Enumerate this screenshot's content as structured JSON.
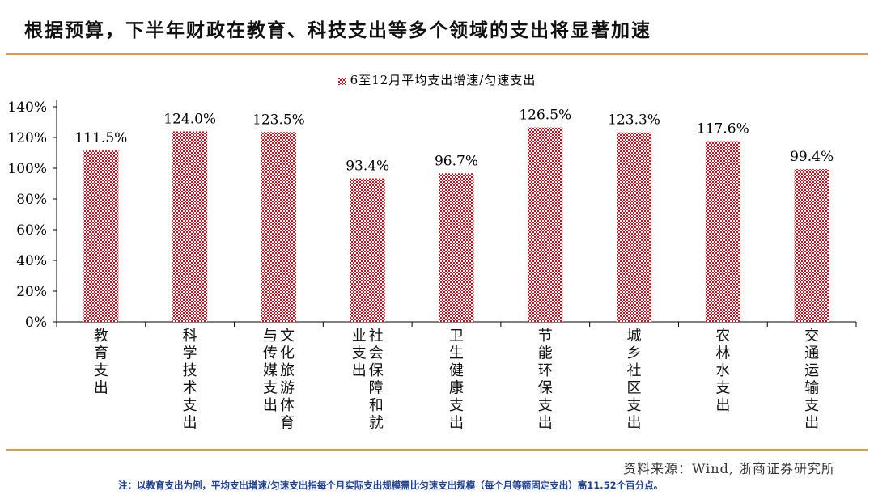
{
  "title": "根据预算，下半年财政在教育、科技支出等多个领域的支出将显著加速",
  "source": "资料来源：Wind, 浙商证券研究所",
  "note": "注：以教育支出为例，平均支出增速/匀速支出指每个月实际支出规模需比匀速支出规模（每个月等额固定支出）高11.52个百分点。",
  "colors": {
    "bar": "#c8101e",
    "rule": "#e59a3a",
    "note": "#1f3f8f"
  },
  "chart_data": {
    "type": "bar",
    "categories": [
      "教育支出",
      "科学技术支出",
      "文化旅游体育与传媒支出",
      "社会保障和就业支出",
      "卫生健康支出",
      "节能环保支出",
      "城乡社区支出",
      "农林水支出",
      "交通运输支出"
    ],
    "category_lines": [
      [
        "教育支出"
      ],
      [
        "科学技术支出"
      ],
      [
        "文化旅游体育",
        "与传媒支出"
      ],
      [
        "社会保障和就",
        "业支出"
      ],
      [
        "卫生健康支出"
      ],
      [
        "节能环保支出"
      ],
      [
        "城乡社区支出"
      ],
      [
        "农林水支出"
      ],
      [
        "交通运输支出"
      ]
    ],
    "series": [
      {
        "name": "6至12月平均支出增速/匀速支出",
        "values": [
          111.5,
          124.0,
          123.5,
          93.4,
          96.7,
          126.5,
          123.3,
          117.6,
          99.4
        ]
      }
    ],
    "data_labels": [
      "111.5%",
      "124.0%",
      "123.5%",
      "93.4%",
      "96.7%",
      "126.5%",
      "123.3%",
      "117.6%",
      "99.4%"
    ],
    "yticks": [
      "0%",
      "20%",
      "40%",
      "60%",
      "80%",
      "100%",
      "120%",
      "140%"
    ],
    "ylim": [
      0,
      140
    ],
    "legend_position": "top-center",
    "grid": false
  }
}
